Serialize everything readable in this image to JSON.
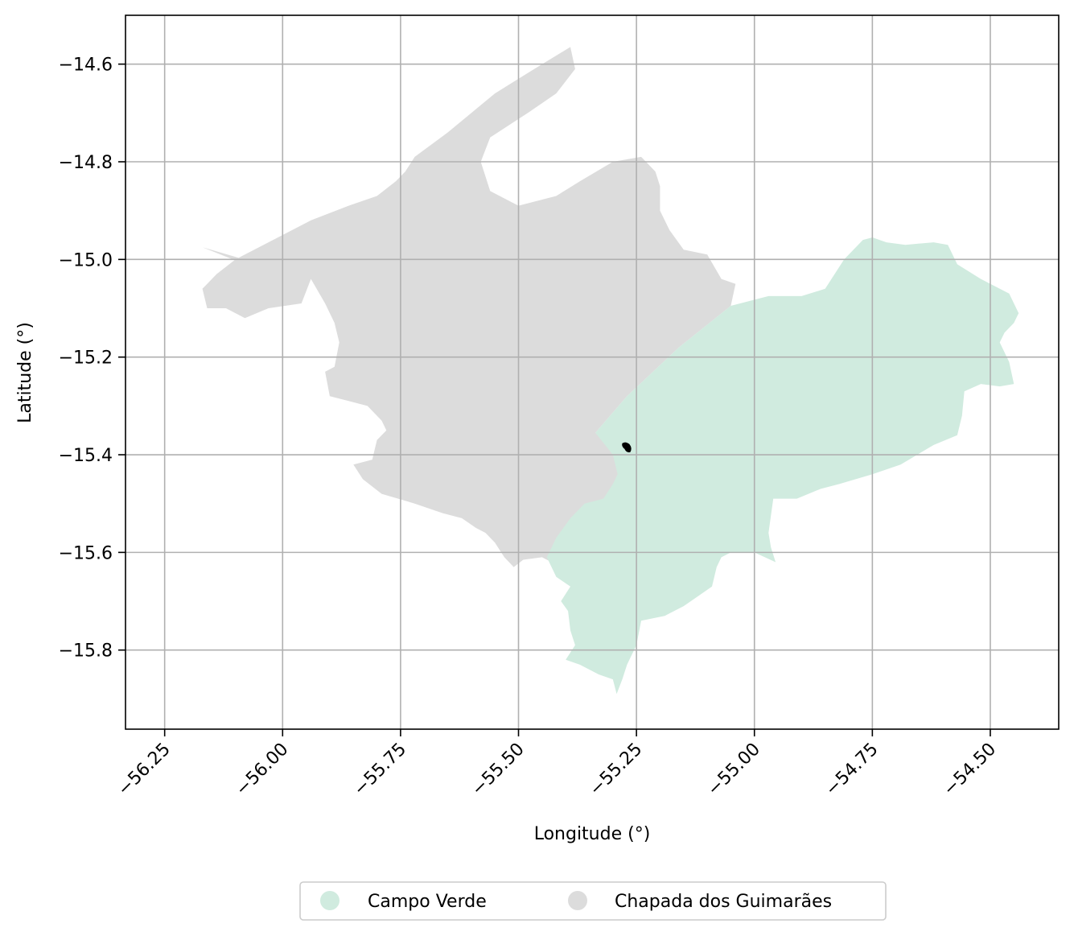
{
  "chart_data": {
    "type": "map",
    "xlabel": "Longitude (°)",
    "ylabel": "Latitude (°)",
    "xlim": [
      -56.333,
      -54.355
    ],
    "ylim": [
      -15.962,
      -14.5
    ],
    "x_ticks": [
      -56.25,
      -56.0,
      -55.75,
      -55.5,
      -55.25,
      -55.0,
      -54.75,
      -54.5
    ],
    "x_tick_labels": [
      "−56.25",
      "−56.00",
      "−55.75",
      "−55.50",
      "−55.25",
      "−55.00",
      "−54.75",
      "−54.50"
    ],
    "y_ticks": [
      -14.6,
      -14.8,
      -15.0,
      -15.2,
      -15.4,
      -15.6,
      -15.8
    ],
    "y_tick_labels": [
      "−14.6",
      "−14.8",
      "−15.0",
      "−15.2",
      "−15.4",
      "−15.6",
      "−15.8"
    ],
    "grid": true,
    "legend_position": "bottom-center, below axes",
    "series": [
      {
        "name": "Campo Verde",
        "color": "#d0ebdf",
        "polygon": [
          [
            -55.337,
            -15.355
          ],
          [
            -55.27,
            -15.28
          ],
          [
            -55.16,
            -15.18
          ],
          [
            -55.05,
            -15.095
          ],
          [
            -54.97,
            -15.075
          ],
          [
            -54.9,
            -15.075
          ],
          [
            -54.85,
            -15.06
          ],
          [
            -54.81,
            -15.0
          ],
          [
            -54.77,
            -14.96
          ],
          [
            -54.75,
            -14.955
          ],
          [
            -54.72,
            -14.965
          ],
          [
            -54.68,
            -14.97
          ],
          [
            -54.62,
            -14.965
          ],
          [
            -54.59,
            -14.97
          ],
          [
            -54.57,
            -15.01
          ],
          [
            -54.52,
            -15.04
          ],
          [
            -54.48,
            -15.06
          ],
          [
            -54.46,
            -15.07
          ],
          [
            -54.44,
            -15.11
          ],
          [
            -54.45,
            -15.13
          ],
          [
            -54.47,
            -15.15
          ],
          [
            -54.48,
            -15.17
          ],
          [
            -54.46,
            -15.21
          ],
          [
            -54.45,
            -15.255
          ],
          [
            -54.48,
            -15.26
          ],
          [
            -54.52,
            -15.255
          ],
          [
            -54.555,
            -15.27
          ],
          [
            -54.56,
            -15.32
          ],
          [
            -54.57,
            -15.36
          ],
          [
            -54.62,
            -15.38
          ],
          [
            -54.69,
            -15.42
          ],
          [
            -54.75,
            -15.44
          ],
          [
            -54.82,
            -15.46
          ],
          [
            -54.86,
            -15.47
          ],
          [
            -54.91,
            -15.49
          ],
          [
            -54.96,
            -15.49
          ],
          [
            -54.97,
            -15.56
          ],
          [
            -54.965,
            -15.59
          ],
          [
            -54.955,
            -15.62
          ],
          [
            -55.0,
            -15.6
          ],
          [
            -55.05,
            -15.6
          ],
          [
            -55.07,
            -15.61
          ],
          [
            -55.08,
            -15.63
          ],
          [
            -55.09,
            -15.67
          ],
          [
            -55.12,
            -15.69
          ],
          [
            -55.15,
            -15.71
          ],
          [
            -55.19,
            -15.73
          ],
          [
            -55.24,
            -15.74
          ],
          [
            -55.25,
            -15.79
          ],
          [
            -55.27,
            -15.83
          ],
          [
            -55.28,
            -15.86
          ],
          [
            -55.292,
            -15.89
          ],
          [
            -55.3,
            -15.86
          ],
          [
            -55.33,
            -15.85
          ],
          [
            -55.37,
            -15.83
          ],
          [
            -55.4,
            -15.82
          ],
          [
            -55.38,
            -15.79
          ],
          [
            -55.39,
            -15.76
          ],
          [
            -55.395,
            -15.72
          ],
          [
            -55.41,
            -15.7
          ],
          [
            -55.39,
            -15.67
          ],
          [
            -55.42,
            -15.65
          ],
          [
            -55.44,
            -15.61
          ],
          [
            -55.42,
            -15.57
          ],
          [
            -55.39,
            -15.53
          ],
          [
            -55.36,
            -15.5
          ],
          [
            -55.32,
            -15.49
          ],
          [
            -55.3,
            -15.46
          ],
          [
            -55.29,
            -15.44
          ],
          [
            -55.3,
            -15.4
          ],
          [
            -55.337,
            -15.355
          ]
        ]
      },
      {
        "name": "Chapada dos Guimarães",
        "color": "#dcdcdc",
        "polygon": [
          [
            -56.17,
            -14.975
          ],
          [
            -56.08,
            -15.01
          ],
          [
            -55.94,
            -15.04
          ],
          [
            -55.91,
            -15.09
          ],
          [
            -55.89,
            -15.13
          ],
          [
            -55.88,
            -15.17
          ],
          [
            -55.89,
            -15.22
          ],
          [
            -55.91,
            -15.23
          ],
          [
            -55.9,
            -15.28
          ],
          [
            -55.86,
            -15.29
          ],
          [
            -55.82,
            -15.3
          ],
          [
            -55.79,
            -15.33
          ],
          [
            -55.78,
            -15.35
          ],
          [
            -55.8,
            -15.37
          ],
          [
            -55.81,
            -15.41
          ],
          [
            -55.85,
            -15.42
          ],
          [
            -55.83,
            -15.45
          ],
          [
            -55.79,
            -15.48
          ],
          [
            -55.72,
            -15.5
          ],
          [
            -55.66,
            -15.52
          ],
          [
            -55.62,
            -15.53
          ],
          [
            -55.59,
            -15.55
          ],
          [
            -55.57,
            -15.56
          ],
          [
            -55.55,
            -15.58
          ],
          [
            -55.53,
            -15.61
          ],
          [
            -55.51,
            -15.63
          ],
          [
            -55.49,
            -15.615
          ],
          [
            -55.45,
            -15.61
          ],
          [
            -55.43,
            -15.62
          ],
          [
            -55.41,
            -15.6
          ],
          [
            -55.39,
            -15.56
          ],
          [
            -55.36,
            -15.53
          ],
          [
            -55.33,
            -15.5
          ],
          [
            -55.3,
            -15.48
          ],
          [
            -55.285,
            -15.44
          ],
          [
            -55.29,
            -15.41
          ],
          [
            -55.3,
            -15.38
          ],
          [
            -55.337,
            -15.355
          ],
          [
            -55.27,
            -15.28
          ],
          [
            -55.16,
            -15.18
          ],
          [
            -55.05,
            -15.095
          ],
          [
            -55.04,
            -15.05
          ],
          [
            -55.07,
            -15.04
          ],
          [
            -55.1,
            -14.99
          ],
          [
            -55.15,
            -14.98
          ],
          [
            -55.18,
            -14.94
          ],
          [
            -55.2,
            -14.9
          ],
          [
            -55.2,
            -14.85
          ],
          [
            -55.21,
            -14.82
          ],
          [
            -55.24,
            -14.79
          ],
          [
            -55.3,
            -14.8
          ],
          [
            -55.37,
            -14.84
          ],
          [
            -55.42,
            -14.87
          ],
          [
            -55.5,
            -14.89
          ],
          [
            -55.56,
            -14.86
          ],
          [
            -55.58,
            -14.8
          ],
          [
            -55.56,
            -14.75
          ],
          [
            -55.48,
            -14.7
          ],
          [
            -55.42,
            -14.66
          ],
          [
            -55.38,
            -14.61
          ],
          [
            -55.39,
            -14.565
          ],
          [
            -55.45,
            -14.6
          ],
          [
            -55.55,
            -14.66
          ],
          [
            -55.65,
            -14.74
          ],
          [
            -55.72,
            -14.79
          ],
          [
            -55.74,
            -14.82
          ],
          [
            -55.76,
            -14.84
          ],
          [
            -55.8,
            -14.87
          ],
          [
            -55.86,
            -14.89
          ],
          [
            -55.94,
            -14.92
          ],
          [
            -56.0,
            -14.95
          ],
          [
            -56.1,
            -15.0
          ],
          [
            -56.14,
            -15.03
          ],
          [
            -56.17,
            -15.06
          ],
          [
            -56.16,
            -15.1
          ],
          [
            -56.12,
            -15.1
          ],
          [
            -56.08,
            -15.12
          ],
          [
            -56.03,
            -15.1
          ],
          [
            -55.96,
            -15.09
          ],
          [
            -55.94,
            -15.04
          ],
          [
            -56.17,
            -14.975
          ]
        ]
      }
    ],
    "marker": {
      "lon": -55.27,
      "lat": -15.385,
      "color": "#000000"
    }
  },
  "legend": {
    "items": [
      {
        "label": "Campo Verde",
        "color": "#d0ebdf"
      },
      {
        "label": "Chapada dos Guimarães",
        "color": "#dcdcdc"
      }
    ]
  }
}
